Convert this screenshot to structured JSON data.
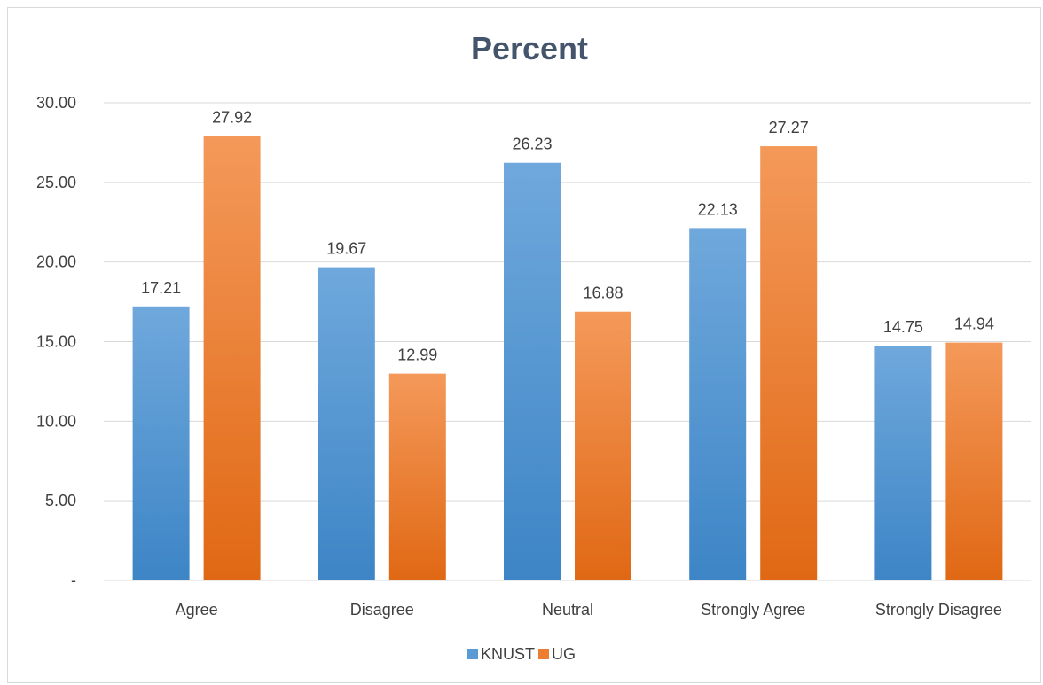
{
  "chart_data": {
    "type": "bar",
    "title": "Percent",
    "xlabel": "",
    "ylabel": "",
    "categories": [
      "Agree",
      "Disagree",
      "Neutral",
      "Strongly Agree",
      "Strongly Disagree"
    ],
    "series": [
      {
        "name": "KNUST",
        "values": [
          17.21,
          19.67,
          26.23,
          22.13,
          14.75
        ],
        "color": "#5b9bd5"
      },
      {
        "name": "UG",
        "values": [
          27.92,
          12.99,
          16.88,
          27.27,
          14.94
        ],
        "color": "#ed7d31"
      }
    ],
    "ylim": [
      0,
      30
    ],
    "yticks": [
      0,
      5,
      10,
      15,
      20,
      25,
      30
    ],
    "ytick_labels": [
      "-",
      "5.00",
      "10.00",
      "15.00",
      "20.00",
      "25.00",
      "30.00"
    ],
    "data_labels": [
      [
        "17.21",
        "19.67",
        "26.23",
        "22.13",
        "14.75"
      ],
      [
        "27.92",
        "12.99",
        "16.88",
        "27.27",
        "14.94"
      ]
    ],
    "grid": true,
    "legend": "bottom"
  }
}
